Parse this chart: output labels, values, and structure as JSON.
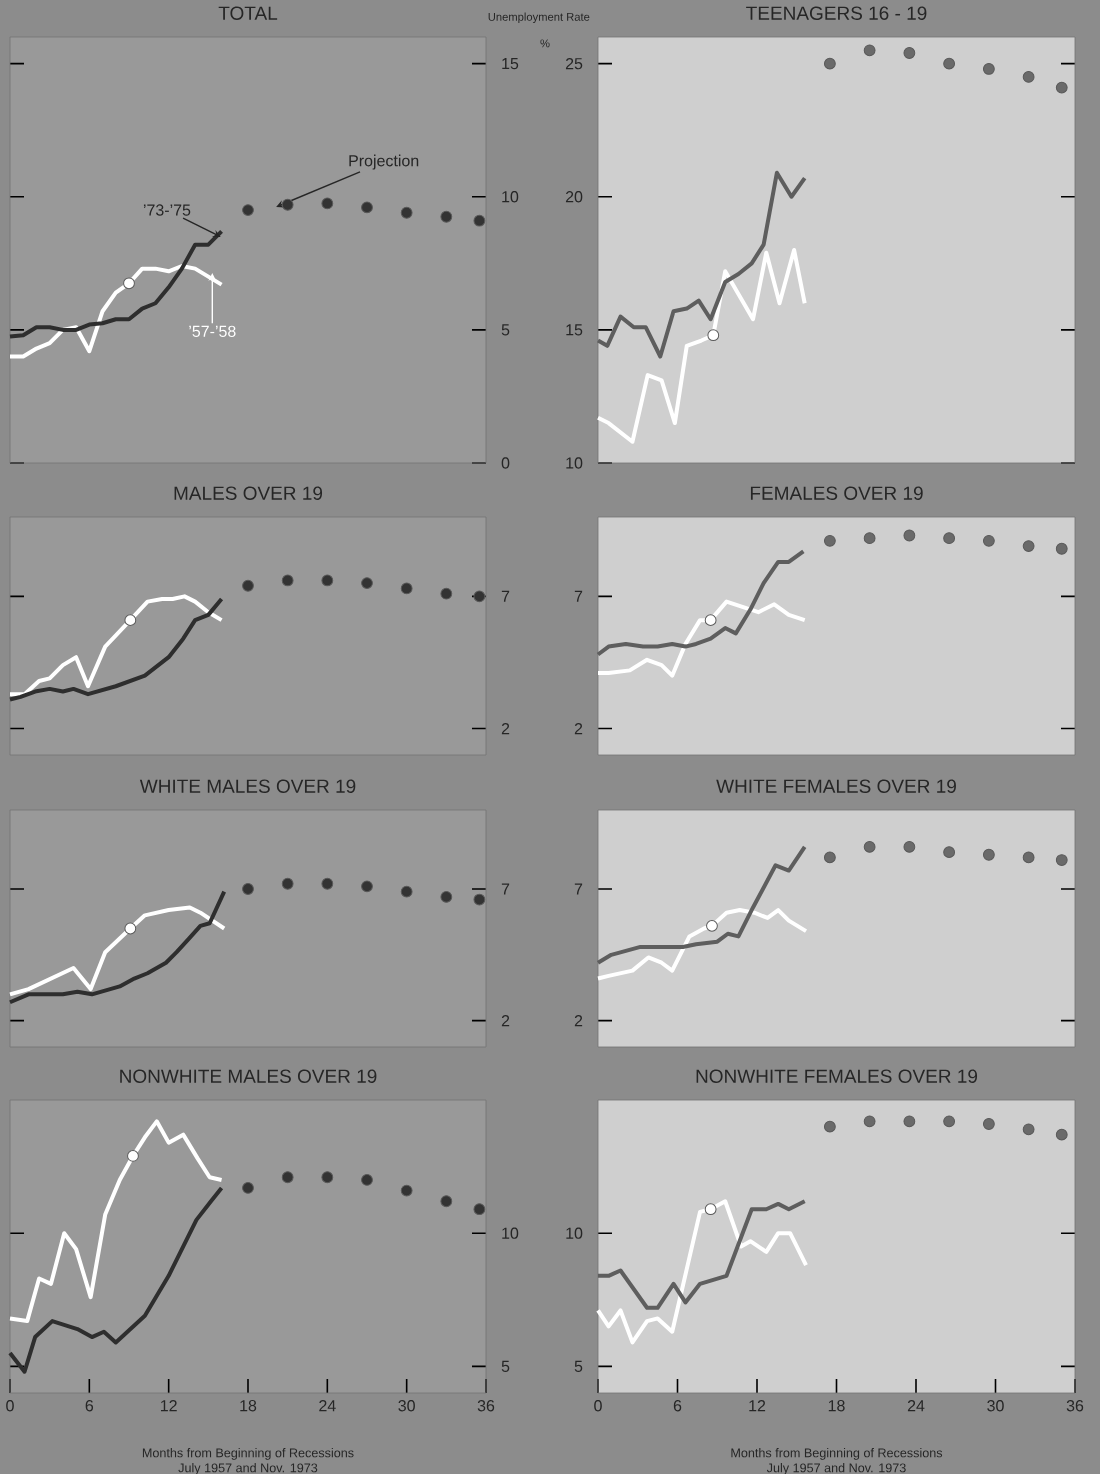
{
  "chart_data": [
    {
      "type": "line",
      "title": "TOTAL",
      "ylabel": "Unemployment Rate",
      "xlim": [
        0,
        36
      ],
      "ylim": [
        0,
        16
      ],
      "yticks": [
        0,
        5,
        10,
        15
      ],
      "tick_labels": "y",
      "annotations": [
        {
          "text": "’73-’75",
          "x": 15.5,
          "y": 8.6
        },
        {
          "text": "’57-’58",
          "x": 15.3,
          "y": 6.9
        },
        {
          "text": "Projection",
          "x": 21,
          "y": 9.8
        },
        "%"
      ],
      "series": [
        {
          "type": "line",
          "color": "#ffffff",
          "x": [
            0,
            1,
            2,
            3,
            4,
            5,
            6,
            7,
            8,
            9,
            10,
            11,
            12,
            13,
            14,
            15,
            16
          ],
          "values": [
            4.0,
            4.0,
            4.3,
            4.5,
            5.0,
            5.1,
            4.2,
            5.7,
            6.4,
            6.75,
            7.3,
            7.3,
            7.2,
            7.4,
            7.3,
            7.0,
            6.7
          ]
        },
        {
          "type": "line",
          "color": "#2e2e2e",
          "x": [
            0,
            1,
            2,
            3,
            4,
            5,
            6,
            7,
            8,
            9,
            10,
            11,
            12,
            13,
            14,
            15,
            16
          ],
          "values": [
            4.75,
            4.8,
            5.1,
            5.1,
            5.0,
            5.0,
            5.2,
            5.25,
            5.4,
            5.4,
            5.8,
            6.0,
            6.6,
            7.3,
            8.2,
            8.2,
            8.7
          ]
        },
        {
          "type": "scatter",
          "marker": "circle",
          "color": "#333333",
          "x": [
            18,
            21,
            24,
            27,
            30,
            33,
            35.5
          ],
          "values": [
            9.5,
            9.7,
            9.75,
            9.6,
            9.4,
            9.25,
            9.1
          ]
        },
        {
          "type": "scatter",
          "marker": "circle",
          "color": "#ffffff",
          "x": [
            9
          ],
          "values": [
            6.75
          ]
        }
      ]
    },
    {
      "type": "line",
      "title": "TEENAGERS 16 - 19",
      "xlim": [
        0,
        36
      ],
      "ylim": [
        10,
        26
      ],
      "yticks": [
        10,
        15,
        20,
        25
      ],
      "tick_labels": "y",
      "series": [
        {
          "type": "line",
          "color": "#ffffff",
          "x": [
            0,
            0.8,
            2.6,
            3.75,
            4.8,
            5.8,
            6.7,
            7.8,
            8.7,
            9.6,
            11.7,
            12.7,
            13.7,
            14.8,
            15.6
          ],
          "values": [
            11.7,
            11.5,
            10.8,
            13.3,
            13.1,
            11.5,
            14.4,
            14.6,
            14.8,
            17.2,
            15.4,
            17.9,
            16.0,
            18.0,
            16.0
          ]
        },
        {
          "type": "line",
          "color": "#5e5e5e",
          "x": [
            0,
            0.7,
            1.7,
            2.7,
            3.6,
            4.7,
            5.7,
            6.7,
            7.6,
            8.5,
            9.6,
            10.6,
            11.6,
            12.5,
            13.5,
            14.6,
            15.6
          ],
          "values": [
            14.6,
            14.4,
            15.5,
            15.1,
            15.1,
            14.0,
            15.7,
            15.8,
            16.1,
            15.4,
            16.8,
            17.1,
            17.5,
            18.2,
            20.9,
            20.0,
            20.7
          ]
        },
        {
          "type": "scatter",
          "marker": "circle",
          "color": "#6a6a6a",
          "x": [
            17.5,
            20.5,
            23.5,
            26.5,
            29.5,
            32.5,
            35
          ],
          "values": [
            25.0,
            25.5,
            25.4,
            25.0,
            24.8,
            24.5,
            24.1
          ]
        },
        {
          "type": "scatter",
          "marker": "circle",
          "color": "#ffffff",
          "x": [
            8.7
          ],
          "values": [
            14.8
          ]
        }
      ]
    },
    {
      "type": "line",
      "title": "MALES OVER 19",
      "xlim": [
        0,
        36
      ],
      "ylim": [
        1,
        10
      ],
      "yticks": [
        2,
        7
      ],
      "tick_labels": "y",
      "series": [
        {
          "type": "line",
          "color": "#ffffff",
          "x": [
            0,
            1.1,
            2.2,
            3.0,
            4.0,
            5.0,
            5.9,
            7.2,
            9.1,
            10.4,
            11.5,
            12.3,
            13.2,
            14.0,
            15.0,
            16.0
          ],
          "values": [
            3.3,
            3.3,
            3.8,
            3.9,
            4.4,
            4.7,
            3.6,
            5.1,
            6.1,
            6.8,
            6.9,
            6.9,
            7.0,
            6.8,
            6.4,
            6.1
          ]
        },
        {
          "type": "line",
          "color": "#2e2e2e",
          "x": [
            0,
            0.8,
            1.9,
            3.0,
            4.0,
            4.8,
            5.9,
            8.0,
            10.2,
            12.0,
            13.1,
            14.0,
            15.0,
            16.0
          ],
          "values": [
            3.1,
            3.2,
            3.4,
            3.5,
            3.4,
            3.5,
            3.3,
            3.6,
            4.0,
            4.7,
            5.4,
            6.1,
            6.3,
            6.9
          ]
        },
        {
          "type": "scatter",
          "marker": "circle",
          "color": "#333333",
          "x": [
            18,
            21,
            24,
            27,
            30,
            33,
            35.5
          ],
          "values": [
            7.4,
            7.6,
            7.6,
            7.5,
            7.3,
            7.1,
            7.0
          ]
        },
        {
          "type": "scatter",
          "marker": "circle",
          "color": "#ffffff",
          "x": [
            9.1
          ],
          "values": [
            6.1
          ]
        }
      ]
    },
    {
      "type": "line",
      "title": "FEMALES OVER 19",
      "xlim": [
        0,
        36
      ],
      "ylim": [
        1,
        10
      ],
      "yticks": [
        2,
        7
      ],
      "tick_labels": "y",
      "series": [
        {
          "type": "line",
          "color": "#ffffff",
          "x": [
            0,
            0.8,
            2.4,
            3.7,
            4.8,
            5.6,
            6.6,
            7.7,
            8.5,
            9.7,
            10.9,
            12.1,
            13.3,
            14.4,
            15.6
          ],
          "values": [
            4.1,
            4.1,
            4.2,
            4.6,
            4.4,
            4.0,
            5.2,
            6.1,
            6.1,
            6.8,
            6.6,
            6.4,
            6.7,
            6.3,
            6.1
          ]
        },
        {
          "type": "line",
          "color": "#5e5e5e",
          "x": [
            0,
            0.8,
            2.1,
            3.4,
            4.5,
            5.6,
            6.6,
            7.4,
            8.5,
            9.6,
            10.4,
            11.5,
            12.5,
            13.6,
            14.4,
            15.5
          ],
          "values": [
            4.8,
            5.1,
            5.2,
            5.1,
            5.1,
            5.2,
            5.1,
            5.2,
            5.4,
            5.8,
            5.6,
            6.5,
            7.5,
            8.3,
            8.3,
            8.7
          ]
        },
        {
          "type": "scatter",
          "marker": "circle",
          "color": "#6a6a6a",
          "x": [
            17.5,
            20.5,
            23.5,
            26.5,
            29.5,
            32.5,
            35
          ],
          "values": [
            9.1,
            9.2,
            9.3,
            9.2,
            9.1,
            8.9,
            8.8
          ]
        },
        {
          "type": "scatter",
          "marker": "circle",
          "color": "#ffffff",
          "x": [
            8.5
          ],
          "values": [
            6.1
          ]
        }
      ]
    },
    {
      "type": "line",
      "title": "WHITE MALES OVER 19",
      "xlim": [
        0,
        36
      ],
      "ylim": [
        1,
        10
      ],
      "yticks": [
        2,
        7
      ],
      "tick_labels": "y",
      "series": [
        {
          "type": "line",
          "color": "#ffffff",
          "x": [
            0,
            1.4,
            4.8,
            6.1,
            7.2,
            9.1,
            10.2,
            12.0,
            13.6,
            14.4,
            16.2
          ],
          "values": [
            3.0,
            3.2,
            4.0,
            3.2,
            4.6,
            5.5,
            6.0,
            6.2,
            6.3,
            6.1,
            5.5
          ]
        },
        {
          "type": "line",
          "color": "#2e2e2e",
          "x": [
            0,
            1.4,
            2.4,
            4.0,
            5.1,
            6.2,
            8.3,
            9.4,
            10.4,
            11.8,
            12.6,
            13.5,
            14.4,
            15.1,
            16.2
          ],
          "values": [
            2.7,
            3.0,
            3.0,
            3.0,
            3.1,
            3.0,
            3.3,
            3.6,
            3.8,
            4.2,
            4.6,
            5.1,
            5.6,
            5.7,
            6.9
          ]
        },
        {
          "type": "scatter",
          "marker": "circle",
          "color": "#333333",
          "x": [
            18,
            21,
            24,
            27,
            30,
            33,
            35.5
          ],
          "values": [
            7.0,
            7.2,
            7.2,
            7.1,
            6.9,
            6.7,
            6.6
          ]
        },
        {
          "type": "scatter",
          "marker": "circle",
          "color": "#ffffff",
          "x": [
            9.1
          ],
          "values": [
            5.5
          ]
        }
      ]
    },
    {
      "type": "line",
      "title": "WHITE FEMALES OVER 19",
      "xlim": [
        0,
        36
      ],
      "ylim": [
        1,
        10
      ],
      "yticks": [
        2,
        7
      ],
      "tick_labels": "y",
      "series": [
        {
          "type": "line",
          "color": "#ffffff",
          "x": [
            0,
            0.8,
            2.6,
            3.8,
            4.8,
            5.6,
            6.9,
            8.0,
            8.6,
            9.7,
            10.7,
            11.8,
            12.8,
            13.6,
            14.4,
            15.7
          ],
          "values": [
            3.6,
            3.7,
            3.9,
            4.4,
            4.2,
            3.9,
            5.2,
            5.5,
            5.6,
            6.1,
            6.2,
            6.1,
            5.9,
            6.2,
            5.8,
            5.4
          ]
        },
        {
          "type": "line",
          "color": "#5e5e5e",
          "x": [
            0,
            1.0,
            3.2,
            4.3,
            5.0,
            6.4,
            7.4,
            9.0,
            9.8,
            10.6,
            11.7,
            13.4,
            14.4,
            15.6
          ],
          "values": [
            4.2,
            4.5,
            4.8,
            4.8,
            4.8,
            4.8,
            4.9,
            5.0,
            5.3,
            5.2,
            6.3,
            7.9,
            7.7,
            8.6
          ]
        },
        {
          "type": "scatter",
          "marker": "circle",
          "color": "#6a6a6a",
          "x": [
            17.5,
            20.5,
            23.5,
            26.5,
            29.5,
            32.5,
            35
          ],
          "values": [
            8.2,
            8.6,
            8.6,
            8.4,
            8.3,
            8.2,
            8.1
          ]
        },
        {
          "type": "scatter",
          "marker": "circle",
          "color": "#ffffff",
          "x": [
            8.6
          ],
          "values": [
            5.6
          ]
        }
      ]
    },
    {
      "type": "line",
      "title": "NONWHITE MALES OVER 19",
      "xlabel": "Months from Beginning of Recessions",
      "annotations": [
        "July 1957 and Nov. 1973"
      ],
      "xlim": [
        0,
        36
      ],
      "xticks": [
        0,
        6,
        12,
        18,
        24,
        30,
        36
      ],
      "ylim": [
        4,
        15
      ],
      "yticks": [
        5,
        10
      ],
      "series": [
        {
          "type": "line",
          "color": "#ffffff",
          "x": [
            0,
            1.3,
            2.2,
            3.1,
            4.1,
            5.0,
            6.1,
            7.2,
            8.3,
            9.3,
            10.2,
            11.1,
            12.0,
            13.1,
            14.2,
            15.1,
            16.0
          ],
          "values": [
            6.8,
            6.7,
            8.3,
            8.1,
            10.0,
            9.4,
            7.6,
            10.7,
            12.0,
            12.9,
            13.6,
            14.2,
            13.4,
            13.7,
            12.8,
            12.1,
            12.0
          ]
        },
        {
          "type": "line",
          "color": "#2e2e2e",
          "x": [
            0,
            1.1,
            1.9,
            3.2,
            5.1,
            6.2,
            7.1,
            8.0,
            10.2,
            12.0,
            14.1,
            15.2,
            16.0
          ],
          "values": [
            5.5,
            4.8,
            6.1,
            6.7,
            6.4,
            6.1,
            6.3,
            5.9,
            6.9,
            8.4,
            10.5,
            11.2,
            11.7
          ]
        },
        {
          "type": "scatter",
          "marker": "circle",
          "color": "#333333",
          "x": [
            18,
            21,
            24,
            27,
            30,
            33,
            35.5
          ],
          "values": [
            11.7,
            12.1,
            12.1,
            12.0,
            11.6,
            11.2,
            10.9
          ]
        },
        {
          "type": "scatter",
          "marker": "circle",
          "color": "#ffffff",
          "x": [
            9.3
          ],
          "values": [
            12.9
          ]
        }
      ]
    },
    {
      "type": "line",
      "title": "NONWHITE FEMALES OVER 19",
      "xlabel": "Months from Beginning of Recessions",
      "annotations": [
        "July 1957 and Nov. 1973"
      ],
      "xlim": [
        0,
        36
      ],
      "xticks": [
        0,
        6,
        12,
        18,
        24,
        30,
        36
      ],
      "ylim": [
        4,
        15
      ],
      "yticks": [
        5,
        10
      ],
      "series": [
        {
          "type": "line",
          "color": "#ffffff",
          "x": [
            0,
            0.8,
            1.7,
            2.6,
            3.7,
            4.5,
            5.6,
            7.7,
            8.5,
            9.6,
            10.8,
            11.5,
            12.7,
            13.6,
            14.5,
            15.7
          ],
          "values": [
            7.1,
            6.5,
            7.1,
            5.9,
            6.7,
            6.8,
            6.3,
            10.8,
            10.9,
            11.2,
            9.5,
            9.7,
            9.3,
            10.0,
            10.0,
            8.8
          ]
        },
        {
          "type": "line",
          "color": "#5e5e5e",
          "x": [
            0,
            0.8,
            1.7,
            3.7,
            4.5,
            5.7,
            6.6,
            7.7,
            9.7,
            11.6,
            12.7,
            13.6,
            14.4,
            15.6
          ],
          "values": [
            8.4,
            8.4,
            8.6,
            7.2,
            7.2,
            8.1,
            7.4,
            8.1,
            8.4,
            10.9,
            10.9,
            11.1,
            10.9,
            11.2
          ]
        },
        {
          "type": "scatter",
          "marker": "circle",
          "color": "#6a6a6a",
          "x": [
            17.5,
            20.5,
            23.5,
            26.5,
            29.5,
            32.5,
            35
          ],
          "values": [
            14.0,
            14.2,
            14.2,
            14.2,
            14.1,
            13.9,
            13.7
          ]
        },
        {
          "type": "scatter",
          "marker": "circle",
          "color": "#ffffff",
          "x": [
            8.5
          ],
          "values": [
            10.9
          ]
        }
      ]
    }
  ]
}
